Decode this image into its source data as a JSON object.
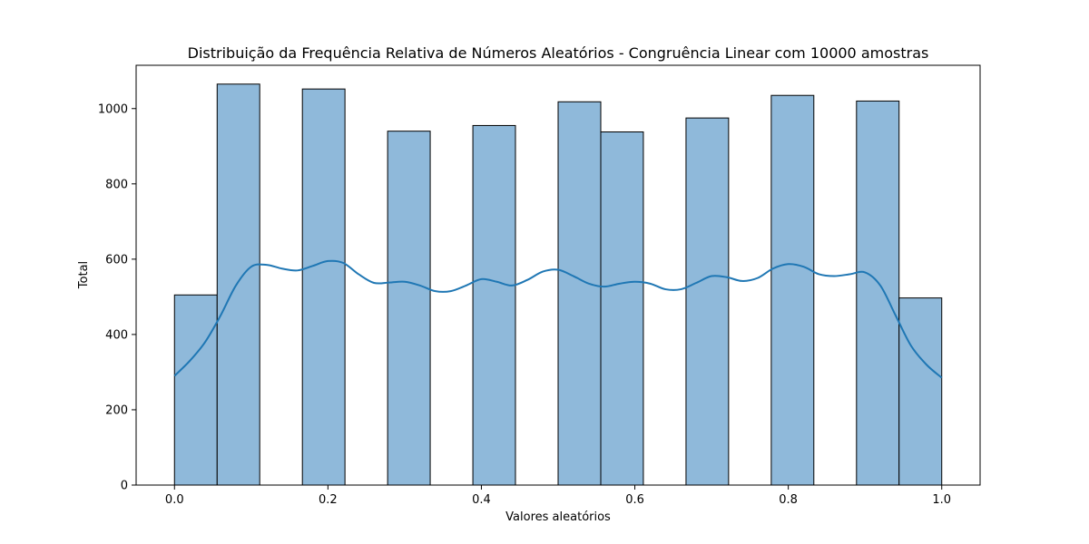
{
  "chart_data": {
    "type": "bar",
    "title": "Distribuição da Frequência Relativa de Números Aleatórios - Congruência Linear com 10000 amostras",
    "xlabel": "Valores aleatórios",
    "ylabel": "Total",
    "xlim": [
      -0.05,
      1.05
    ],
    "ylim": [
      0,
      1115
    ],
    "xticks": [
      0.0,
      0.2,
      0.4,
      0.6,
      0.8,
      1.0
    ],
    "xtick_labels": [
      "0.0",
      "0.2",
      "0.4",
      "0.6",
      "0.8",
      "1.0"
    ],
    "yticks": [
      0,
      200,
      400,
      600,
      800,
      1000
    ],
    "ytick_labels": [
      "0",
      "200",
      "400",
      "600",
      "800",
      "1000"
    ],
    "grid": false,
    "bars": [
      {
        "x0": 0.0,
        "x1": 0.0556,
        "value": 505
      },
      {
        "x0": 0.0556,
        "x1": 0.1111,
        "value": 1065
      },
      {
        "x0": 0.1667,
        "x1": 0.2222,
        "value": 1052
      },
      {
        "x0": 0.2778,
        "x1": 0.3333,
        "value": 940
      },
      {
        "x0": 0.3889,
        "x1": 0.4444,
        "value": 955
      },
      {
        "x0": 0.5,
        "x1": 0.5556,
        "value": 1018
      },
      {
        "x0": 0.5556,
        "x1": 0.6111,
        "value": 938
      },
      {
        "x0": 0.6667,
        "x1": 0.7222,
        "value": 975
      },
      {
        "x0": 0.7778,
        "x1": 0.8333,
        "value": 1035
      },
      {
        "x0": 0.8889,
        "x1": 0.9444,
        "value": 1020
      },
      {
        "x0": 0.9444,
        "x1": 1.0,
        "value": 497
      }
    ],
    "kde": {
      "x": [
        0.0,
        0.02,
        0.04,
        0.06,
        0.08,
        0.1,
        0.12,
        0.14,
        0.16,
        0.18,
        0.2,
        0.22,
        0.24,
        0.26,
        0.28,
        0.3,
        0.32,
        0.34,
        0.36,
        0.38,
        0.4,
        0.42,
        0.44,
        0.46,
        0.48,
        0.5,
        0.52,
        0.54,
        0.56,
        0.58,
        0.6,
        0.62,
        0.64,
        0.66,
        0.68,
        0.7,
        0.72,
        0.74,
        0.76,
        0.78,
        0.8,
        0.82,
        0.84,
        0.86,
        0.88,
        0.9,
        0.92,
        0.94,
        0.96,
        0.98,
        1.0
      ],
      "y": [
        290,
        330,
        380,
        450,
        530,
        580,
        585,
        575,
        570,
        582,
        595,
        590,
        560,
        537,
        538,
        540,
        530,
        515,
        515,
        530,
        547,
        540,
        530,
        545,
        567,
        572,
        555,
        535,
        527,
        535,
        540,
        535,
        520,
        520,
        537,
        555,
        552,
        542,
        550,
        575,
        587,
        580,
        560,
        555,
        560,
        565,
        530,
        450,
        370,
        320,
        285
      ],
      "color": "#1f77b4"
    },
    "bar_fill": "#8fb9da",
    "bar_edge": "#000000"
  }
}
